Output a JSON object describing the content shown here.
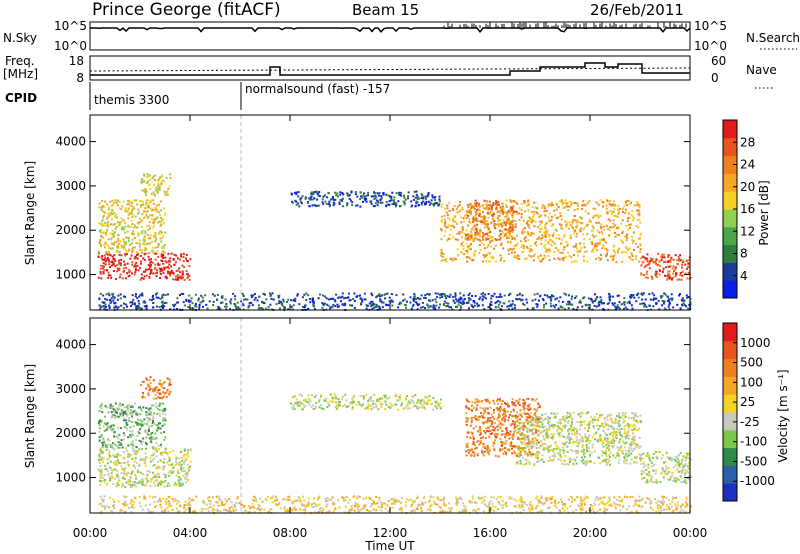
{
  "header": {
    "station": "Prince George (fitACF)",
    "beam": "Beam 15",
    "date": "26/Feb/2011"
  },
  "noise_panel": {
    "left_label": "N.Sky",
    "left_ticks": [
      "10^5",
      "10^0"
    ],
    "right_label": "N.Search",
    "right_ticks": [
      "10^5",
      "10^0"
    ]
  },
  "freq_panel": {
    "left_label_1": "Freq.",
    "left_label_2": "[MHz]",
    "left_ticks": [
      "18",
      "8"
    ],
    "right_label": "Nave",
    "right_ticks": [
      "60",
      "0"
    ]
  },
  "cpid_panel": {
    "label": "CPID",
    "modes": [
      "themis 3300",
      "normalsound (fast) -157"
    ]
  },
  "x_axis": {
    "label": "Time UT",
    "ticks": [
      "00:00",
      "04:00",
      "08:00",
      "12:00",
      "16:00",
      "20:00",
      "00:00"
    ]
  },
  "chart_data": [
    {
      "type": "heatmap",
      "name": "power",
      "ylabel": "Slant Range [km]",
      "y_ticks": [
        1000,
        2000,
        3000,
        4000
      ],
      "ylim": [
        200,
        4600
      ],
      "xlim_hours": [
        0,
        24
      ],
      "colorbar": {
        "label": "Power [dB]",
        "ticks": [
          "4",
          "8",
          "12",
          "16",
          "20",
          "24",
          "28"
        ],
        "colors": [
          "#0a1fe6",
          "#1a3a9e",
          "#2e7d3c",
          "#4aa84a",
          "#8fd14f",
          "#f5d223",
          "#f5a623",
          "#f07f1d",
          "#e8531e",
          "#e01b1b"
        ]
      },
      "regions": [
        {
          "t0": 0.3,
          "t1": 4.0,
          "r0": 900,
          "r1": 1500,
          "level": 9
        },
        {
          "t0": 0.3,
          "t1": 3.0,
          "r0": 1500,
          "r1": 2700,
          "level": 5
        },
        {
          "t0": 2.0,
          "t1": 3.2,
          "r0": 2800,
          "r1": 3300,
          "level": 5
        },
        {
          "t0": 0.3,
          "t1": 24.0,
          "r0": 220,
          "r1": 600,
          "level": 1
        },
        {
          "t0": 8.0,
          "t1": 14.0,
          "r0": 2550,
          "r1": 2900,
          "level": 1
        },
        {
          "t0": 14.0,
          "t1": 22.0,
          "r0": 1300,
          "r1": 2700,
          "level": 6
        },
        {
          "t0": 15.0,
          "t1": 17.0,
          "r0": 1800,
          "r1": 2700,
          "level": 7
        },
        {
          "t0": 22.0,
          "t1": 24.0,
          "r0": 900,
          "r1": 1500,
          "level": 8
        }
      ]
    },
    {
      "type": "heatmap",
      "name": "velocity",
      "ylabel": "Slant Range [km]",
      "y_ticks": [
        1000,
        2000,
        3000,
        4000
      ],
      "ylim": [
        200,
        4600
      ],
      "xlim_hours": [
        0,
        24
      ],
      "colorbar": {
        "label": "Velocity [m s⁻¹]",
        "ticks": [
          "1000",
          "500",
          "100",
          "25",
          "-25",
          "-100",
          "-500",
          "-1000"
        ],
        "colors": [
          "#1e2fbf",
          "#2b5fa8",
          "#2e8b45",
          "#7cc84b",
          "#c8c8c0",
          "#f5d223",
          "#f5a623",
          "#f07f1d",
          "#e8531e",
          "#e01b1b"
        ]
      },
      "regions": [
        {
          "t0": 0.3,
          "t1": 4.0,
          "r0": 800,
          "r1": 1700,
          "level": 4
        },
        {
          "t0": 0.3,
          "t1": 3.0,
          "r0": 1700,
          "r1": 2700,
          "level": 3
        },
        {
          "t0": 2.0,
          "t1": 3.2,
          "r0": 2800,
          "r1": 3300,
          "level": 7
        },
        {
          "t0": 0.3,
          "t1": 24.0,
          "r0": 220,
          "r1": 600,
          "level": 5
        },
        {
          "t0": 8.0,
          "t1": 14.0,
          "r0": 2550,
          "r1": 2900,
          "level": 4
        },
        {
          "t0": 15.0,
          "t1": 18.0,
          "r0": 1500,
          "r1": 2800,
          "level": 7
        },
        {
          "t0": 17.0,
          "t1": 22.0,
          "r0": 1300,
          "r1": 2500,
          "level": 4
        },
        {
          "t0": 22.0,
          "t1": 24.0,
          "r0": 900,
          "r1": 1600,
          "level": 4
        }
      ]
    }
  ]
}
